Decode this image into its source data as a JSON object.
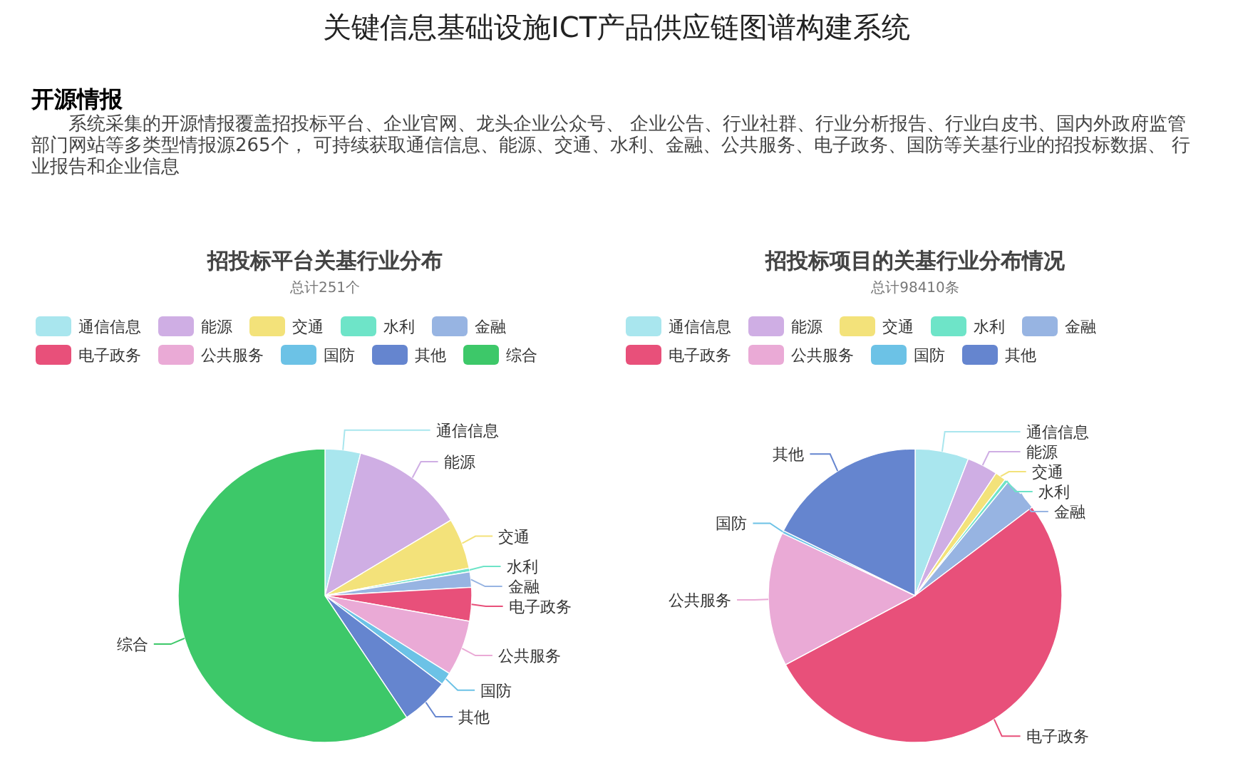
{
  "chart_data": [
    {
      "type": "other",
      "title": "关键信息基础设施ICT产品供应链图谱构建系统",
      "subtitle": "开源情报",
      "annotations": [
        "系统采集的开源情报覆盖招投标平台、企业官网、龙头企业公众号、 企业公告、行业社群、行业分析报告、行业白皮书、国内外政府监管部门网站等多类型情报源265个， 可持续获取通信信息、能源、交通、水利、金融、公共服务、电子政务、国防等关基行业的招投标数据、 行业报告和企业信息"
      ]
    },
    {
      "type": "pie",
      "title": "招投标平台关基行业分布",
      "subtitle": "总计251个",
      "legend": "top",
      "categories": [
        "通信信息",
        "能源",
        "交通",
        "水利",
        "金融",
        "电子政务",
        "公共服务",
        "国防",
        "其他",
        "综合"
      ],
      "values": [
        3.9,
        12.5,
        5.6,
        0.4,
        1.7,
        3.7,
        6.1,
        1.4,
        5.3,
        59.4
      ],
      "colors": [
        "#a9e6ee",
        "#cfaee4",
        "#f3e27a",
        "#6ee4c8",
        "#97b4e2",
        "#e8507a",
        "#eaaad6",
        "#6cc2e6",
        "#6585cf",
        "#3dc869"
      ]
    },
    {
      "type": "pie",
      "title": "招投标项目的关基行业分布情况",
      "subtitle": "总计98410条",
      "legend": "top",
      "categories": [
        "通信信息",
        "能源",
        "交通",
        "水利",
        "金融",
        "电子政务",
        "公共服务",
        "国防",
        "其他"
      ],
      "values": [
        5.9,
        3.4,
        1.2,
        0.4,
        3.8,
        52.5,
        14.8,
        0.3,
        17.7
      ],
      "colors": [
        "#a9e6ee",
        "#cfaee4",
        "#f3e27a",
        "#6ee4c8",
        "#97b4e2",
        "#e8507a",
        "#eaaad6",
        "#6cc2e6",
        "#6585cf"
      ]
    }
  ]
}
